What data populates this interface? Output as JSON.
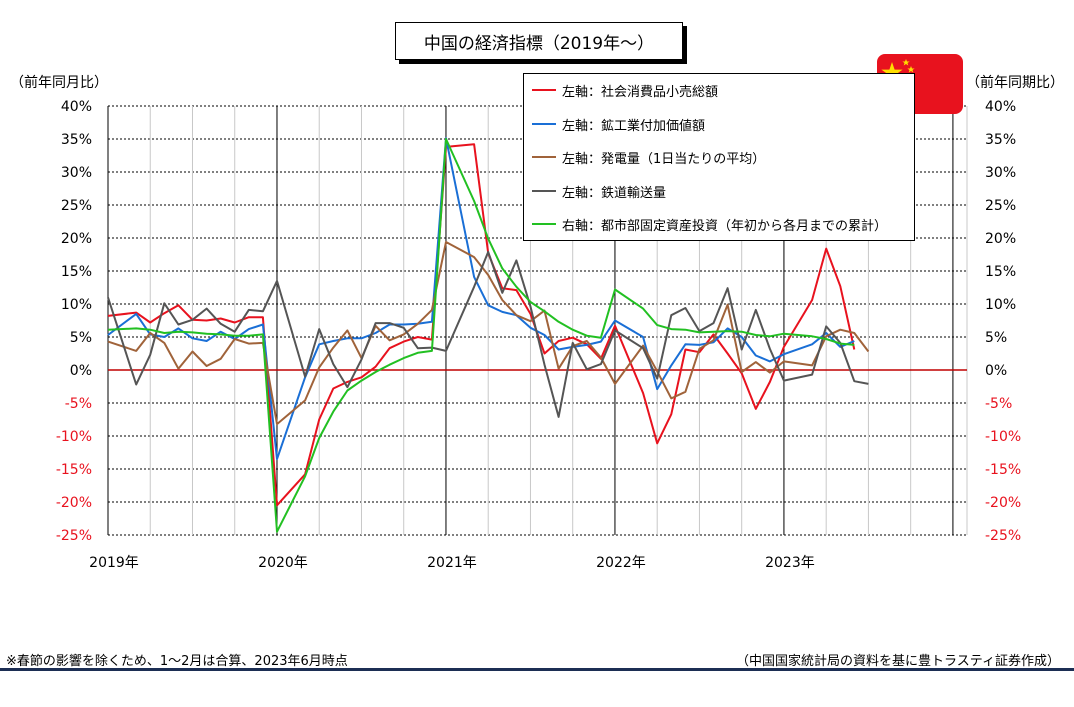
{
  "title": "中国の経済指標（2019年～）",
  "left_unit": "（前年同月比）",
  "right_unit": "（前年同期比）",
  "footnote_left": "※春節の影響を除くため、1～2月は合算、2023年6月時点",
  "footnote_right": "（中国国家統計局の資料を基に豊トラスティ証券作成）",
  "flag_icon": "china-flag-icon",
  "colors": {
    "red": "#e8121e",
    "blue": "#1a6fd6",
    "brown": "#a0633a",
    "gray": "#555555",
    "green": "#22c022",
    "right_tick_color": "#e8121e",
    "zero_line": "#c00000"
  },
  "chart_data": {
    "type": "line",
    "x_tick_labels": [
      "2019年",
      "2020年",
      "2021年",
      "2022年",
      "2023年"
    ],
    "yticks_left": [
      "40%",
      "35%",
      "30%",
      "25%",
      "20%",
      "15%",
      "10%",
      "5%",
      "0%",
      "-5%",
      "-10%",
      "-15%",
      "-20%",
      "-25%"
    ],
    "yticks_right": [
      "40%",
      "35%",
      "30%",
      "25%",
      "20%",
      "15%",
      "10%",
      "5%",
      "0%",
      "-5%",
      "-10%",
      "-15%",
      "-20%",
      "-25%"
    ],
    "ylim": [
      -25,
      40
    ],
    "xlim": [
      "2019-01",
      "2024-02"
    ],
    "grid": true,
    "legend_position": "top-right",
    "series": [
      {
        "name": "左軸：社会消費品小売総額",
        "color": "#e8121e",
        "axis": "left",
        "points": [
          [
            "2019-01",
            8.2
          ],
          [
            "2019-03",
            8.7
          ],
          [
            "2019-04",
            7.2
          ],
          [
            "2019-05",
            8.6
          ],
          [
            "2019-06",
            9.8
          ],
          [
            "2019-07",
            7.6
          ],
          [
            "2019-08",
            7.5
          ],
          [
            "2019-09",
            7.8
          ],
          [
            "2019-10",
            7.2
          ],
          [
            "2019-11",
            8.0
          ],
          [
            "2019-12",
            8.0
          ],
          [
            "2020-01",
            -20.5
          ],
          [
            "2020-03",
            -15.8
          ],
          [
            "2020-04",
            -7.5
          ],
          [
            "2020-05",
            -2.8
          ],
          [
            "2020-06",
            -1.8
          ],
          [
            "2020-07",
            -1.1
          ],
          [
            "2020-08",
            0.5
          ],
          [
            "2020-09",
            3.3
          ],
          [
            "2020-10",
            4.3
          ],
          [
            "2020-11",
            5.0
          ],
          [
            "2020-12",
            4.6
          ],
          [
            "2021-01",
            33.8
          ],
          [
            "2021-03",
            34.2
          ],
          [
            "2021-04",
            17.7
          ],
          [
            "2021-05",
            12.4
          ],
          [
            "2021-06",
            12.1
          ],
          [
            "2021-07",
            8.5
          ],
          [
            "2021-08",
            2.5
          ],
          [
            "2021-09",
            4.4
          ],
          [
            "2021-10",
            4.9
          ],
          [
            "2021-11",
            3.9
          ],
          [
            "2021-12",
            1.7
          ],
          [
            "2022-01",
            6.7
          ],
          [
            "2022-03",
            -3.5
          ],
          [
            "2022-04",
            -11.1
          ],
          [
            "2022-05",
            -6.7
          ],
          [
            "2022-06",
            3.1
          ],
          [
            "2022-07",
            2.7
          ],
          [
            "2022-08",
            5.4
          ],
          [
            "2022-09",
            2.5
          ],
          [
            "2022-10",
            -0.5
          ],
          [
            "2022-11",
            -5.9
          ],
          [
            "2022-12",
            -1.8
          ],
          [
            "2023-01",
            3.5
          ],
          [
            "2023-03",
            10.6
          ],
          [
            "2023-04",
            18.4
          ],
          [
            "2023-05",
            12.7
          ],
          [
            "2023-06",
            3.1
          ]
        ]
      },
      {
        "name": "左軸：鉱工業付加価値額",
        "color": "#1a6fd6",
        "axis": "left",
        "points": [
          [
            "2019-01",
            5.3
          ],
          [
            "2019-03",
            8.5
          ],
          [
            "2019-04",
            5.4
          ],
          [
            "2019-05",
            5.0
          ],
          [
            "2019-06",
            6.3
          ],
          [
            "2019-07",
            4.8
          ],
          [
            "2019-08",
            4.4
          ],
          [
            "2019-09",
            5.8
          ],
          [
            "2019-10",
            4.7
          ],
          [
            "2019-11",
            6.2
          ],
          [
            "2019-12",
            6.9
          ],
          [
            "2020-01",
            -13.5
          ],
          [
            "2020-03",
            -1.1
          ],
          [
            "2020-04",
            3.9
          ],
          [
            "2020-05",
            4.4
          ],
          [
            "2020-06",
            4.8
          ],
          [
            "2020-07",
            4.8
          ],
          [
            "2020-08",
            5.6
          ],
          [
            "2020-09",
            6.9
          ],
          [
            "2020-10",
            6.9
          ],
          [
            "2020-11",
            7.0
          ],
          [
            "2020-12",
            7.3
          ],
          [
            "2021-01",
            35.1
          ],
          [
            "2021-03",
            14.1
          ],
          [
            "2021-04",
            9.8
          ],
          [
            "2021-05",
            8.8
          ],
          [
            "2021-06",
            8.3
          ],
          [
            "2021-07",
            6.4
          ],
          [
            "2021-08",
            5.3
          ],
          [
            "2021-09",
            3.1
          ],
          [
            "2021-10",
            3.5
          ],
          [
            "2021-11",
            3.8
          ],
          [
            "2021-12",
            4.3
          ],
          [
            "2022-01",
            7.5
          ],
          [
            "2022-03",
            5.0
          ],
          [
            "2022-04",
            -2.9
          ],
          [
            "2022-05",
            0.7
          ],
          [
            "2022-06",
            3.9
          ],
          [
            "2022-07",
            3.8
          ],
          [
            "2022-08",
            4.2
          ],
          [
            "2022-09",
            6.3
          ],
          [
            "2022-10",
            5.0
          ],
          [
            "2022-11",
            2.2
          ],
          [
            "2022-12",
            1.3
          ],
          [
            "2023-01",
            2.4
          ],
          [
            "2023-03",
            3.9
          ],
          [
            "2023-04",
            5.6
          ],
          [
            "2023-05",
            3.5
          ],
          [
            "2023-06",
            4.4
          ]
        ]
      },
      {
        "name": "左軸：発電量（1日当たりの平均）",
        "color": "#a0633a",
        "axis": "left",
        "points": [
          [
            "2019-01",
            4.3
          ],
          [
            "2019-03",
            2.9
          ],
          [
            "2019-04",
            5.6
          ],
          [
            "2019-05",
            4.1
          ],
          [
            "2019-06",
            0.2
          ],
          [
            "2019-07",
            2.8
          ],
          [
            "2019-08",
            0.6
          ],
          [
            "2019-09",
            1.7
          ],
          [
            "2019-10",
            4.7
          ],
          [
            "2019-11",
            4.0
          ],
          [
            "2019-12",
            4.1
          ],
          [
            "2020-01",
            -8.2
          ],
          [
            "2020-03",
            -4.6
          ],
          [
            "2020-04",
            0.4
          ],
          [
            "2020-05",
            3.4
          ],
          [
            "2020-06",
            6.0
          ],
          [
            "2020-07",
            1.8
          ],
          [
            "2020-08",
            6.7
          ],
          [
            "2020-09",
            4.5
          ],
          [
            "2020-10",
            5.4
          ],
          [
            "2020-11",
            7.0
          ],
          [
            "2020-12",
            9.1
          ],
          [
            "2021-01",
            19.4
          ],
          [
            "2021-03",
            17.1
          ],
          [
            "2021-04",
            14.4
          ],
          [
            "2021-05",
            10.6
          ],
          [
            "2021-06",
            8.3
          ],
          [
            "2021-07",
            7.4
          ],
          [
            "2021-08",
            9.0
          ],
          [
            "2021-09",
            0.2
          ],
          [
            "2021-10",
            3.6
          ],
          [
            "2021-11",
            4.4
          ],
          [
            "2021-12",
            1.9
          ],
          [
            "2022-01",
            -2.1
          ],
          [
            "2022-03",
            3.7
          ],
          [
            "2022-04",
            -0.2
          ],
          [
            "2022-05",
            -4.3
          ],
          [
            "2022-06",
            -3.3
          ],
          [
            "2022-07",
            3.2
          ],
          [
            "2022-08",
            4.5
          ],
          [
            "2022-09",
            9.9
          ],
          [
            "2022-10",
            -0.3
          ],
          [
            "2022-11",
            1.2
          ],
          [
            "2022-12",
            -0.4
          ],
          [
            "2023-01",
            1.3
          ],
          [
            "2023-03",
            0.7
          ],
          [
            "2023-04",
            5.1
          ],
          [
            "2023-05",
            6.1
          ],
          [
            "2023-06",
            5.6
          ],
          [
            "2023-07",
            2.8
          ]
        ]
      },
      {
        "name": "左軸：鉄道輸送量",
        "color": "#555555",
        "axis": "left",
        "points": [
          [
            "2019-01",
            11.0
          ],
          [
            "2019-03",
            -2.2
          ],
          [
            "2019-04",
            2.3
          ],
          [
            "2019-05",
            10.1
          ],
          [
            "2019-06",
            6.9
          ],
          [
            "2019-07",
            7.6
          ],
          [
            "2019-08",
            9.3
          ],
          [
            "2019-09",
            7.0
          ],
          [
            "2019-10",
            5.8
          ],
          [
            "2019-11",
            9.1
          ],
          [
            "2019-12",
            8.9
          ],
          [
            "2020-01",
            13.5
          ],
          [
            "2020-03",
            -1.0
          ],
          [
            "2020-04",
            6.2
          ],
          [
            "2020-05",
            0.9
          ],
          [
            "2020-06",
            -2.6
          ],
          [
            "2020-07",
            1.6
          ],
          [
            "2020-08",
            7.1
          ],
          [
            "2020-09",
            7.1
          ],
          [
            "2020-10",
            6.4
          ],
          [
            "2020-11",
            3.3
          ],
          [
            "2020-12",
            3.4
          ],
          [
            "2021-01",
            2.9
          ],
          [
            "2021-03",
            12.6
          ],
          [
            "2021-04",
            17.9
          ],
          [
            "2021-05",
            11.7
          ],
          [
            "2021-06",
            16.6
          ],
          [
            "2021-07",
            9.6
          ],
          [
            "2021-08",
            0.8
          ],
          [
            "2021-09",
            -7.1
          ],
          [
            "2021-10",
            4.1
          ],
          [
            "2021-11",
            0.1
          ],
          [
            "2021-12",
            0.9
          ],
          [
            "2022-01",
            6.0
          ],
          [
            "2022-03",
            3.3
          ],
          [
            "2022-04",
            -1.3
          ],
          [
            "2022-05",
            8.3
          ],
          [
            "2022-06",
            9.4
          ],
          [
            "2022-07",
            5.9
          ],
          [
            "2022-08",
            7.1
          ],
          [
            "2022-09",
            12.4
          ],
          [
            "2022-10",
            3.1
          ],
          [
            "2022-11",
            9.1
          ],
          [
            "2022-12",
            3.2
          ],
          [
            "2023-01",
            -1.6
          ],
          [
            "2023-03",
            -0.7
          ],
          [
            "2023-04",
            6.6
          ],
          [
            "2023-05",
            4.1
          ],
          [
            "2023-06",
            -1.7
          ],
          [
            "2023-07",
            -2.1
          ]
        ]
      },
      {
        "name": "右軸：都市部固定資産投資（年初から各月までの累計）",
        "color": "#22c022",
        "axis": "right",
        "points": [
          [
            "2019-01",
            6.1
          ],
          [
            "2019-03",
            6.3
          ],
          [
            "2019-04",
            6.1
          ],
          [
            "2019-05",
            5.6
          ],
          [
            "2019-06",
            5.8
          ],
          [
            "2019-07",
            5.7
          ],
          [
            "2019-08",
            5.5
          ],
          [
            "2019-09",
            5.4
          ],
          [
            "2019-10",
            5.2
          ],
          [
            "2019-11",
            5.2
          ],
          [
            "2019-12",
            5.4
          ],
          [
            "2020-01",
            -24.5
          ],
          [
            "2020-03",
            -16.1
          ],
          [
            "2020-04",
            -10.3
          ],
          [
            "2020-05",
            -6.3
          ],
          [
            "2020-06",
            -3.1
          ],
          [
            "2020-07",
            -1.6
          ],
          [
            "2020-08",
            -0.3
          ],
          [
            "2020-09",
            0.8
          ],
          [
            "2020-10",
            1.8
          ],
          [
            "2020-11",
            2.6
          ],
          [
            "2020-12",
            2.9
          ],
          [
            "2021-01",
            35.0
          ],
          [
            "2021-03",
            25.6
          ],
          [
            "2021-04",
            19.9
          ],
          [
            "2021-05",
            15.4
          ],
          [
            "2021-06",
            12.6
          ],
          [
            "2021-07",
            10.3
          ],
          [
            "2021-08",
            8.9
          ],
          [
            "2021-09",
            7.3
          ],
          [
            "2021-10",
            6.1
          ],
          [
            "2021-11",
            5.2
          ],
          [
            "2021-12",
            4.9
          ],
          [
            "2022-01",
            12.2
          ],
          [
            "2022-03",
            9.3
          ],
          [
            "2022-04",
            6.8
          ],
          [
            "2022-05",
            6.2
          ],
          [
            "2022-06",
            6.1
          ],
          [
            "2022-07",
            5.7
          ],
          [
            "2022-08",
            5.8
          ],
          [
            "2022-09",
            5.9
          ],
          [
            "2022-10",
            5.8
          ],
          [
            "2022-11",
            5.3
          ],
          [
            "2022-12",
            5.1
          ],
          [
            "2023-01",
            5.5
          ],
          [
            "2023-03",
            5.1
          ],
          [
            "2023-04",
            4.7
          ],
          [
            "2023-05",
            4.0
          ],
          [
            "2023-06",
            3.8
          ]
        ]
      }
    ]
  }
}
